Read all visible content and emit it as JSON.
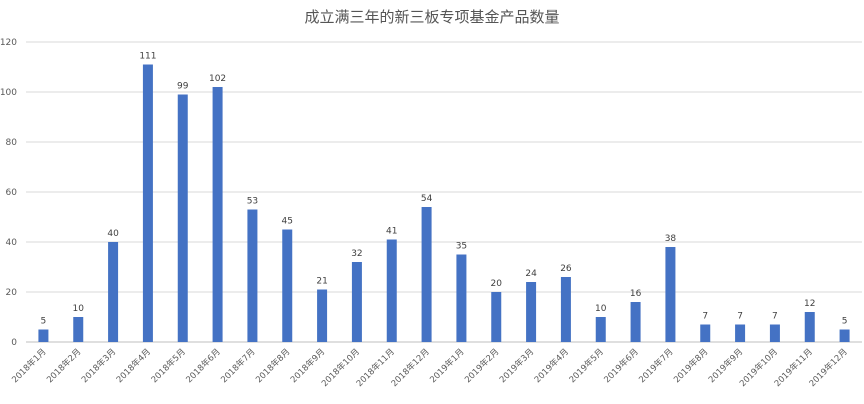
{
  "chart_data": {
    "type": "bar",
    "title": "成立满三年的新三板专项基金产品数量",
    "xlabel": "",
    "ylabel": "",
    "ylim": [
      0,
      120
    ],
    "yticks": [
      0,
      20,
      40,
      60,
      80,
      100,
      120
    ],
    "grid": true,
    "bar_color": "#4472C4",
    "categories": [
      "2018年1月",
      "2018年2月",
      "2018年3月",
      "2018年4月",
      "2018年5月",
      "2018年6月",
      "2018年7月",
      "2018年8月",
      "2018年9月",
      "2018年10月",
      "2018年11月",
      "2018年12月",
      "2019年1月",
      "2019年2月",
      "2019年3月",
      "2019年4月",
      "2019年5月",
      "2019年6月",
      "2019年7月",
      "2019年8月",
      "2019年9月",
      "2019年10月",
      "2019年11月",
      "2019年12月"
    ],
    "values": [
      5,
      10,
      40,
      111,
      99,
      102,
      53,
      45,
      21,
      32,
      41,
      54,
      35,
      20,
      24,
      26,
      10,
      16,
      38,
      7,
      7,
      7,
      12,
      5
    ]
  }
}
